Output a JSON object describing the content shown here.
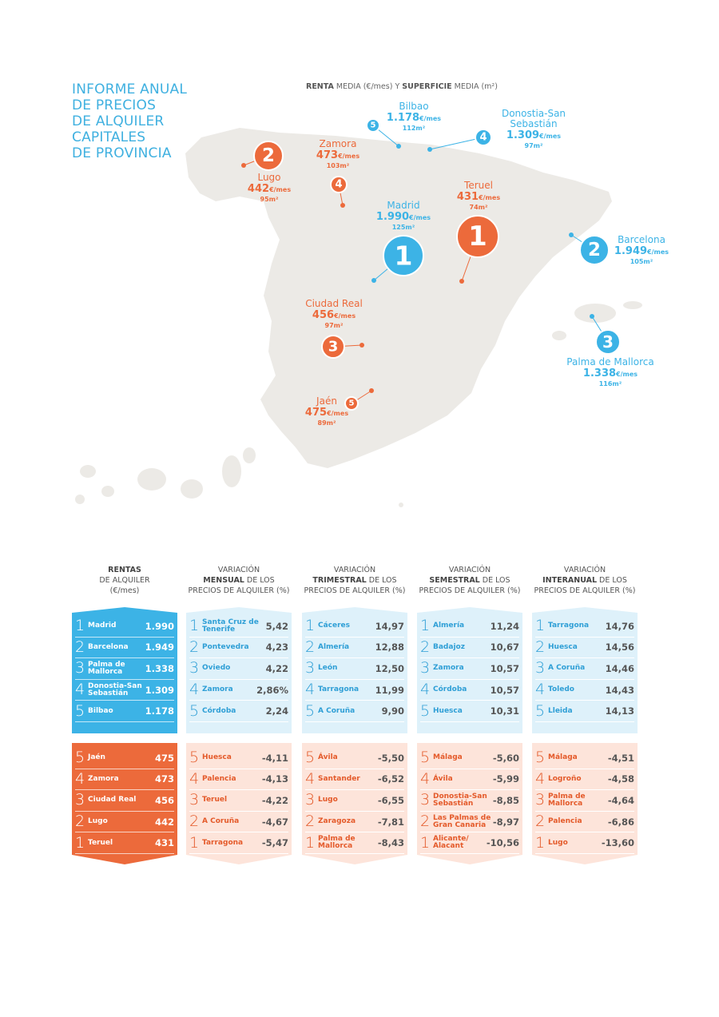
{
  "header": {
    "title": [
      "INFORME ANUAL",
      "DE PRECIOS",
      "DE ALQUILER",
      "CAPITALES",
      "DE PROVINCIA"
    ]
  },
  "map": {
    "subtitle": [
      "RENTA",
      " MEDIA (€/mes) Y ",
      "SUPERFICIE",
      " MEDIA (m²)"
    ],
    "markers": [
      {
        "rank": 1,
        "city": "Madrid",
        "rent": "1.990",
        "unit": "€/mes",
        "area": "125m²",
        "color": "#3cb3e6"
      },
      {
        "rank": 2,
        "city": "Barcelona",
        "rent": "1.949",
        "unit": "€/mes",
        "area": "105m²",
        "color": "#3cb3e6"
      },
      {
        "rank": 3,
        "city": "Palma de Mallorca",
        "rent": "1.338",
        "unit": "€/mes",
        "area": "116m²",
        "color": "#3cb3e6"
      },
      {
        "rank": 4,
        "city": "Donostia-San Sebastián",
        "rent": "1.309",
        "unit": "€/mes",
        "area": "97m²",
        "color": "#3cb3e6"
      },
      {
        "rank": 5,
        "city": "Bilbao",
        "rent": "1.178",
        "unit": "€/mes",
        "area": "112m²",
        "color": "#3cb3e6"
      },
      {
        "rank": 1,
        "city": "Teruel",
        "rent": "431",
        "unit": "€/mes",
        "area": "74m²",
        "color": "#ec6a3b"
      },
      {
        "rank": 2,
        "city": "Lugo",
        "rent": "442",
        "unit": "€/mes",
        "area": "95m²",
        "color": "#ec6a3b"
      },
      {
        "rank": 3,
        "city": "Ciudad Real",
        "rent": "456",
        "unit": "€/mes",
        "area": "97m²",
        "color": "#ec6a3b"
      },
      {
        "rank": 4,
        "city": "Zamora",
        "rent": "473",
        "unit": "€/mes",
        "area": "103m²",
        "color": "#ec6a3b"
      },
      {
        "rank": 5,
        "city": "Jaén",
        "rent": "475",
        "unit": "€/mes",
        "area": "89m²",
        "color": "#ec6a3b"
      }
    ]
  },
  "table": {
    "columns": [
      {
        "header": [
          [
            "RENTAS"
          ],
          [
            "DE ALQUILER"
          ],
          [
            "(€/mes)"
          ]
        ],
        "top": [
          {
            "rank": 1,
            "city": "Madrid",
            "value": "1.990"
          },
          {
            "rank": 2,
            "city": "Barcelona",
            "value": "1.949"
          },
          {
            "rank": 3,
            "city": "Palma de Mallorca",
            "value": "1.338"
          },
          {
            "rank": 4,
            "city": "Donostia-San Sebastián",
            "value": "1.309"
          },
          {
            "rank": 5,
            "city": "Bilbao",
            "value": "1.178"
          }
        ],
        "bottom": [
          {
            "rank": 5,
            "city": "Jaén",
            "value": "475"
          },
          {
            "rank": 4,
            "city": "Zamora",
            "value": "473"
          },
          {
            "rank": 3,
            "city": "Ciudad Real",
            "value": "456"
          },
          {
            "rank": 2,
            "city": "Lugo",
            "value": "442"
          },
          {
            "rank": 1,
            "city": "Teruel",
            "value": "431"
          }
        ]
      },
      {
        "header": [
          [
            "VARIACIÓN"
          ],
          [
            "MENSUAL",
            " DE LOS"
          ],
          [
            "PRECIOS DE ALQUILER (%)"
          ]
        ],
        "top": [
          {
            "rank": 1,
            "city": "Santa Cruz de Tenerife",
            "value": "5,42"
          },
          {
            "rank": 2,
            "city": "Pontevedra",
            "value": "4,23"
          },
          {
            "rank": 3,
            "city": "Oviedo",
            "value": "4,22"
          },
          {
            "rank": 4,
            "city": "Zamora",
            "value": "2,86%"
          },
          {
            "rank": 5,
            "city": "Córdoba",
            "value": "2,24"
          }
        ],
        "bottom": [
          {
            "rank": 5,
            "city": "Huesca",
            "value": "-4,11"
          },
          {
            "rank": 4,
            "city": "Palencia",
            "value": "-4,13"
          },
          {
            "rank": 3,
            "city": "Teruel",
            "value": "-4,22"
          },
          {
            "rank": 2,
            "city": "A Coruña",
            "value": "-4,67"
          },
          {
            "rank": 1,
            "city": "Tarragona",
            "value": "-5,47"
          }
        ]
      },
      {
        "header": [
          [
            "VARIACIÓN"
          ],
          [
            "TRIMESTRAL",
            " DE LOS"
          ],
          [
            "PRECIOS DE ALQUILER (%)"
          ]
        ],
        "top": [
          {
            "rank": 1,
            "city": "Cáceres",
            "value": "14,97"
          },
          {
            "rank": 2,
            "city": "Almería",
            "value": "12,88"
          },
          {
            "rank": 3,
            "city": "León",
            "value": "12,50"
          },
          {
            "rank": 4,
            "city": "Tarragona",
            "value": "11,99"
          },
          {
            "rank": 5,
            "city": "A Coruña",
            "value": "9,90"
          }
        ],
        "bottom": [
          {
            "rank": 5,
            "city": "Ávila",
            "value": "-5,50"
          },
          {
            "rank": 4,
            "city": "Santander",
            "value": "-6,52"
          },
          {
            "rank": 3,
            "city": "Lugo",
            "value": "-6,55"
          },
          {
            "rank": 2,
            "city": "Zaragoza",
            "value": "-7,81"
          },
          {
            "rank": 1,
            "city": "Palma de Mallorca",
            "value": "-8,43"
          }
        ]
      },
      {
        "header": [
          [
            "VARIACIÓN"
          ],
          [
            "SEMESTRAL",
            " DE LOS"
          ],
          [
            "PRECIOS DE ALQUILER (%)"
          ]
        ],
        "top": [
          {
            "rank": 1,
            "city": "Almería",
            "value": "11,24"
          },
          {
            "rank": 2,
            "city": "Badajoz",
            "value": "10,67"
          },
          {
            "rank": 3,
            "city": "Zamora",
            "value": "10,57"
          },
          {
            "rank": 4,
            "city": "Córdoba",
            "value": "10,57"
          },
          {
            "rank": 5,
            "city": "Huesca",
            "value": "10,31"
          }
        ],
        "bottom": [
          {
            "rank": 5,
            "city": "Málaga",
            "value": "-5,60"
          },
          {
            "rank": 4,
            "city": "Ávila",
            "value": "-5,99"
          },
          {
            "rank": 3,
            "city": "Donostia-San Sebastián",
            "value": "-8,85"
          },
          {
            "rank": 2,
            "city": "Las Palmas de Gran Canaria",
            "value": "-8,97"
          },
          {
            "rank": 1,
            "city": "Alicante/ Alacant",
            "value": "-10,56"
          }
        ]
      },
      {
        "header": [
          [
            "VARIACIÓN"
          ],
          [
            "INTERANUAL",
            " DE LOS"
          ],
          [
            "PRECIOS DE ALQUILER (%)"
          ]
        ],
        "top": [
          {
            "rank": 1,
            "city": "Tarragona",
            "value": "14,76"
          },
          {
            "rank": 2,
            "city": "Huesca",
            "value": "14,56"
          },
          {
            "rank": 3,
            "city": "A Coruña",
            "value": "14,46"
          },
          {
            "rank": 4,
            "city": "Toledo",
            "value": "14,43"
          },
          {
            "rank": 5,
            "city": "Lleida",
            "value": "14,13"
          }
        ],
        "bottom": [
          {
            "rank": 5,
            "city": "Málaga",
            "value": "-4,51"
          },
          {
            "rank": 4,
            "city": "Logroño",
            "value": "-4,58"
          },
          {
            "rank": 3,
            "city": "Palma de Mallorca",
            "value": "-4,64"
          },
          {
            "rank": 2,
            "city": "Palencia",
            "value": "-6,86"
          },
          {
            "rank": 1,
            "city": "Lugo",
            "value": "-13,60"
          }
        ]
      }
    ]
  }
}
